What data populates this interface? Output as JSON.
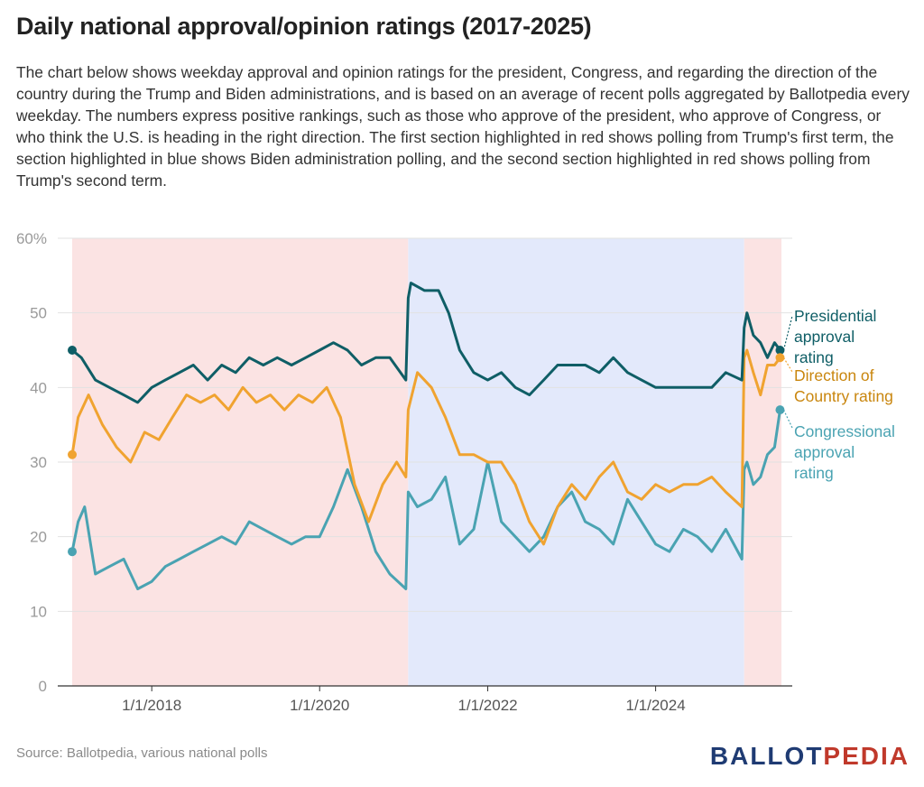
{
  "header": {
    "title": "Daily national approval/opinion ratings (2017-2025)",
    "description": "The chart below shows weekday approval and opinion ratings for the president, Congress, and regarding the direction of the country during the Trump and Biden administrations, and is based on an average of recent polls aggregated by Ballotpedia every weekday. The numbers express positive rankings, such as those who approve of the president, who approve of Congress, or who think the U.S. is heading in the right direction. The first section highlighted in red shows polling from Trump's first term, the section highlighted in blue shows Biden administration polling, and the second section highlighted in red shows polling from Trump's second term."
  },
  "footer": {
    "source": "Source: Ballotpedia, various national polls",
    "logo_part1": "BALLOT",
    "logo_part2": "PEDIA"
  },
  "chart_data": {
    "type": "line",
    "title": "Daily national approval/opinion ratings (2017-2025)",
    "xlabel": "",
    "ylabel": "",
    "ylim": [
      0,
      60
    ],
    "yticks": [
      0,
      10,
      20,
      30,
      40,
      50,
      60
    ],
    "ytick_labels": [
      "0",
      "10",
      "20",
      "30",
      "40",
      "50",
      "60%"
    ],
    "xlim": [
      "2017-01-20",
      "2025-07-01"
    ],
    "xticks": [
      "2018-01-01",
      "2020-01-01",
      "2022-01-01",
      "2024-01-01"
    ],
    "xtick_labels": [
      "1/1/2018",
      "1/1/2020",
      "1/1/2022",
      "1/1/2024"
    ],
    "grid": true,
    "shaded_periods": [
      {
        "start": "2017-01-20",
        "end": "2021-01-20",
        "color": "#fbe3e3"
      },
      {
        "start": "2021-01-20",
        "end": "2025-01-20",
        "color": "#e3e9fb"
      },
      {
        "start": "2025-01-20",
        "end": "2025-07-01",
        "color": "#fbe3e3"
      }
    ],
    "series": [
      {
        "name": "Presidential approval rating",
        "color": "#0f5e66",
        "x": [
          "2017-01-20",
          "2017-03-01",
          "2017-05-01",
          "2017-07-01",
          "2017-09-01",
          "2017-11-01",
          "2018-01-01",
          "2018-03-01",
          "2018-05-01",
          "2018-07-01",
          "2018-09-01",
          "2018-11-01",
          "2019-01-01",
          "2019-03-01",
          "2019-05-01",
          "2019-07-01",
          "2019-09-01",
          "2019-11-01",
          "2020-01-01",
          "2020-03-01",
          "2020-05-01",
          "2020-07-01",
          "2020-09-01",
          "2020-11-01",
          "2021-01-10",
          "2021-01-20",
          "2021-02-01",
          "2021-04-01",
          "2021-06-01",
          "2021-07-15",
          "2021-09-01",
          "2021-11-01",
          "2022-01-01",
          "2022-03-01",
          "2022-05-01",
          "2022-07-01",
          "2022-09-01",
          "2022-11-01",
          "2023-01-01",
          "2023-03-01",
          "2023-05-01",
          "2023-07-01",
          "2023-09-01",
          "2023-11-01",
          "2024-01-01",
          "2024-03-01",
          "2024-05-01",
          "2024-07-01",
          "2024-09-01",
          "2024-11-01",
          "2025-01-10",
          "2025-01-20",
          "2025-02-01",
          "2025-03-01",
          "2025-04-01",
          "2025-05-01",
          "2025-06-01",
          "2025-06-25"
        ],
        "values": [
          45,
          44,
          41,
          40,
          39,
          38,
          40,
          41,
          42,
          43,
          41,
          43,
          42,
          44,
          43,
          44,
          43,
          44,
          45,
          46,
          45,
          43,
          44,
          44,
          41,
          52,
          54,
          53,
          53,
          50,
          45,
          42,
          41,
          42,
          40,
          39,
          41,
          43,
          43,
          43,
          42,
          44,
          42,
          41,
          40,
          40,
          40,
          40,
          40,
          42,
          41,
          48,
          50,
          47,
          46,
          44,
          46,
          45
        ]
      },
      {
        "name": "Direction of Country rating",
        "color": "#f0a330",
        "label_color": "#c9860e",
        "x": [
          "2017-01-20",
          "2017-02-15",
          "2017-04-01",
          "2017-06-01",
          "2017-08-01",
          "2017-10-01",
          "2017-12-01",
          "2018-02-01",
          "2018-04-01",
          "2018-06-01",
          "2018-08-01",
          "2018-10-01",
          "2018-12-01",
          "2019-02-01",
          "2019-04-01",
          "2019-06-01",
          "2019-08-01",
          "2019-10-01",
          "2019-12-01",
          "2020-02-01",
          "2020-04-01",
          "2020-06-01",
          "2020-08-01",
          "2020-10-01",
          "2020-12-01",
          "2021-01-10",
          "2021-01-20",
          "2021-03-01",
          "2021-05-01",
          "2021-07-01",
          "2021-09-01",
          "2021-11-01",
          "2022-01-01",
          "2022-03-01",
          "2022-05-01",
          "2022-07-01",
          "2022-09-01",
          "2022-11-01",
          "2023-01-01",
          "2023-03-01",
          "2023-05-01",
          "2023-07-01",
          "2023-09-01",
          "2023-11-01",
          "2024-01-01",
          "2024-03-01",
          "2024-05-01",
          "2024-07-01",
          "2024-09-01",
          "2024-11-01",
          "2025-01-10",
          "2025-01-20",
          "2025-02-01",
          "2025-03-01",
          "2025-04-01",
          "2025-05-01",
          "2025-06-01",
          "2025-06-25"
        ],
        "values": [
          31,
          36,
          39,
          35,
          32,
          30,
          34,
          33,
          36,
          39,
          38,
          39,
          37,
          40,
          38,
          39,
          37,
          39,
          38,
          40,
          36,
          27,
          22,
          27,
          30,
          28,
          37,
          42,
          40,
          36,
          31,
          31,
          30,
          30,
          27,
          22,
          19,
          24,
          27,
          25,
          28,
          30,
          26,
          25,
          27,
          26,
          27,
          27,
          28,
          26,
          24,
          44,
          45,
          42,
          39,
          43,
          43,
          44
        ]
      },
      {
        "name": "Congressional approval rating",
        "color": "#4aa3b2",
        "x": [
          "2017-01-20",
          "2017-02-15",
          "2017-03-15",
          "2017-05-01",
          "2017-07-01",
          "2017-09-01",
          "2017-11-01",
          "2018-01-01",
          "2018-03-01",
          "2018-05-01",
          "2018-07-01",
          "2018-09-01",
          "2018-11-01",
          "2019-01-01",
          "2019-03-01",
          "2019-05-01",
          "2019-07-01",
          "2019-09-01",
          "2019-11-01",
          "2020-01-01",
          "2020-03-01",
          "2020-05-01",
          "2020-07-01",
          "2020-09-01",
          "2020-11-01",
          "2021-01-10",
          "2021-01-20",
          "2021-03-01",
          "2021-05-01",
          "2021-07-01",
          "2021-09-01",
          "2021-11-01",
          "2022-01-01",
          "2022-03-01",
          "2022-05-01",
          "2022-07-01",
          "2022-09-01",
          "2022-11-01",
          "2023-01-01",
          "2023-03-01",
          "2023-05-01",
          "2023-07-01",
          "2023-09-01",
          "2023-11-01",
          "2024-01-01",
          "2024-03-01",
          "2024-05-01",
          "2024-07-01",
          "2024-09-01",
          "2024-11-01",
          "2025-01-10",
          "2025-01-20",
          "2025-02-01",
          "2025-03-01",
          "2025-04-01",
          "2025-05-01",
          "2025-06-01",
          "2025-06-25"
        ],
        "values": [
          18,
          22,
          24,
          15,
          16,
          17,
          13,
          14,
          16,
          17,
          18,
          19,
          20,
          19,
          22,
          21,
          20,
          19,
          20,
          20,
          24,
          29,
          24,
          18,
          15,
          13,
          26,
          24,
          25,
          28,
          19,
          21,
          30,
          22,
          20,
          18,
          20,
          24,
          26,
          22,
          21,
          19,
          25,
          22,
          19,
          18,
          21,
          20,
          18,
          21,
          17,
          29,
          30,
          27,
          28,
          31,
          32,
          37
        ]
      }
    ]
  }
}
